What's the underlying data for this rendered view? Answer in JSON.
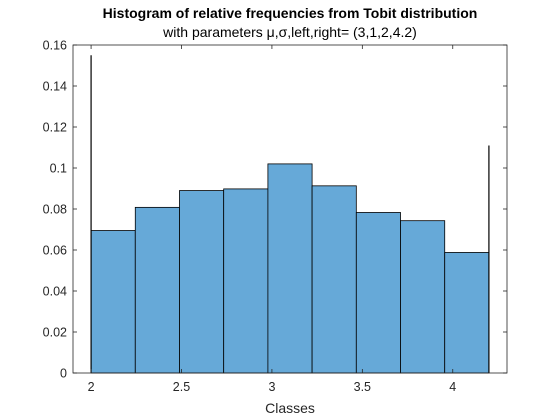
{
  "chart_data": {
    "type": "bar",
    "title": "Histogram of relative frequencies from Tobit distribution",
    "subtitle": "with parameters μ,σ,left,right= (3,1,2,4.2)",
    "xlabel": "Classes",
    "ylabel": "",
    "xlim": [
      1.9,
      4.3
    ],
    "ylim": [
      0,
      0.16
    ],
    "xticks": [
      2,
      2.5,
      3,
      3.5,
      4
    ],
    "xtick_labels": [
      "2",
      "2.5",
      "3",
      "3.5",
      "4"
    ],
    "yticks": [
      0,
      0.02,
      0.04,
      0.06,
      0.08,
      0.1,
      0.12,
      0.14,
      0.16
    ],
    "ytick_labels": [
      "0",
      "0.02",
      "0.04",
      "0.06",
      "0.08",
      "0.1",
      "0.12",
      "0.14",
      "0.16"
    ],
    "bin_edges": [
      2,
      2.2444,
      2.4889,
      2.7333,
      2.9778,
      3.2222,
      3.4667,
      3.7111,
      3.9556,
      4.2
    ],
    "values": [
      0.0695,
      0.0808,
      0.089,
      0.0898,
      0.102,
      0.0913,
      0.0783,
      0.0743,
      0.0588
    ],
    "spikes": [
      {
        "x": 2,
        "y": 0.155
      },
      {
        "x": 4.2,
        "y": 0.111
      }
    ],
    "bar_color": "#66A9D8",
    "grid": false
  }
}
